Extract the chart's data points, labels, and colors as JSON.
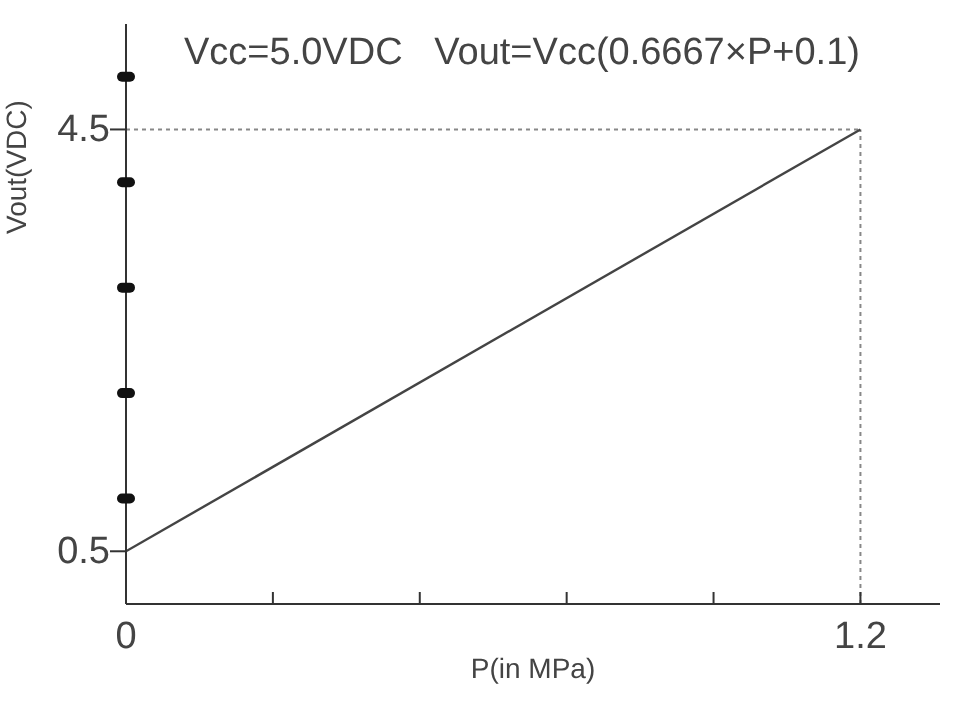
{
  "chart_data": {
    "type": "line",
    "title": "Vcc=5.0VDC   Vout=Vcc(0.6667×P+0.1)",
    "xlabel": "P(in MPa)",
    "ylabel": "Vout(VDC)",
    "x": [
      0,
      1.2
    ],
    "series": [
      {
        "color": "#444444",
        "values": [
          0.5,
          4.5
        ]
      }
    ],
    "xlim": [
      0,
      1.33
    ],
    "ylim": [
      0,
      5.5
    ],
    "xticks": [
      0,
      {
        "value": 0.24,
        "label": null
      },
      {
        "value": 0.48,
        "label": null
      },
      {
        "value": 0.72,
        "label": null
      },
      {
        "value": 0.96,
        "label": null
      },
      1.2
    ],
    "yticks": [
      0.5,
      {
        "value": 1,
        "label": null
      },
      {
        "value": 2,
        "label": null
      },
      {
        "value": 3,
        "label": null
      },
      {
        "value": 4,
        "label": null
      },
      4.5,
      {
        "value": 5,
        "label": null
      }
    ],
    "ref_lines": [
      {
        "axis": "y",
        "value": 4.5,
        "color": "#888888",
        "line_style": "dotted"
      },
      {
        "axis": "x",
        "value": 1.2,
        "color": "#888888",
        "line_style": "dotted"
      }
    ],
    "grid": false,
    "legend": false,
    "marker": "none",
    "line_style": "solid"
  }
}
